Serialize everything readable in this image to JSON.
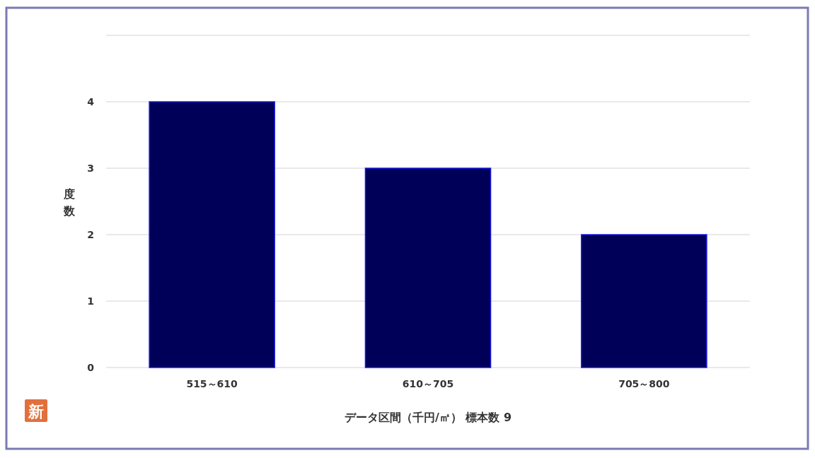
{
  "chart_data": {
    "type": "bar",
    "categories": [
      "515～610",
      "610～705",
      "705～800"
    ],
    "values": [
      4,
      3,
      2
    ],
    "color": "#000058",
    "xlabel": "データ区間（千円/㎡） 標本数 9",
    "ylabel": "度数",
    "ylim": [
      0,
      5
    ],
    "yticks": [
      0,
      1,
      2,
      3,
      4,
      {
        "value": 5,
        "label": null
      }
    ],
    "grid": "y",
    "annotations": [
      "新"
    ]
  }
}
